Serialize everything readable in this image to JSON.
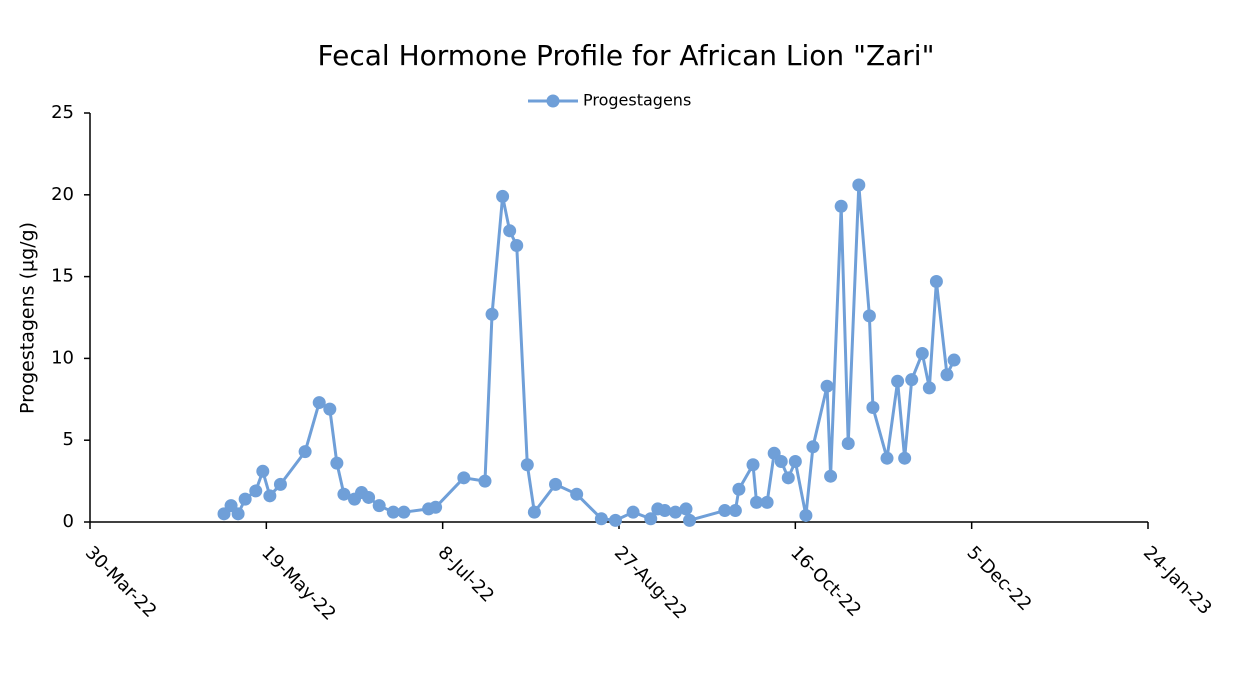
{
  "chart_data": {
    "type": "line",
    "title": "Fecal Hormone Profile for African Lion \"Zari\"",
    "y_label": "Progestagens (µg/g)",
    "legend": "top",
    "x": [
      "2022-05-07",
      "2022-05-09",
      "2022-05-11",
      "2022-05-13",
      "2022-05-16",
      "2022-05-18",
      "2022-05-20",
      "2022-05-23",
      "2022-05-30",
      "2022-06-03",
      "2022-06-06",
      "2022-06-08",
      "2022-06-10",
      "2022-06-13",
      "2022-06-15",
      "2022-06-17",
      "2022-06-20",
      "2022-06-24",
      "2022-06-27",
      "2022-07-04",
      "2022-07-06",
      "2022-07-14",
      "2022-07-20",
      "2022-07-22",
      "2022-07-25",
      "2022-07-27",
      "2022-07-29",
      "2022-08-01",
      "2022-08-03",
      "2022-08-09",
      "2022-08-15",
      "2022-08-22",
      "2022-08-26",
      "2022-08-31",
      "2022-09-05",
      "2022-09-07",
      "2022-09-09",
      "2022-09-12",
      "2022-09-15",
      "2022-09-16",
      "2022-09-26",
      "2022-09-29",
      "2022-09-30",
      "2022-10-04",
      "2022-10-05",
      "2022-10-08",
      "2022-10-10",
      "2022-10-12",
      "2022-10-14",
      "2022-10-16",
      "2022-10-19",
      "2022-10-21",
      "2022-10-25",
      "2022-10-26",
      "2022-10-29",
      "2022-10-31",
      "2022-11-03",
      "2022-11-06",
      "2022-11-07",
      "2022-11-11",
      "2022-11-14",
      "2022-11-16",
      "2022-11-18",
      "2022-11-21",
      "2022-11-23",
      "2022-11-25",
      "2022-11-28",
      "2022-11-30"
    ],
    "series": [
      {
        "name": "Progestagens",
        "color": "#6f9fd8",
        "values": [
          0.5,
          1.0,
          0.5,
          1.4,
          1.9,
          3.1,
          1.6,
          2.3,
          4.3,
          7.3,
          6.9,
          3.6,
          1.7,
          1.4,
          1.8,
          1.5,
          1.0,
          0.6,
          0.6,
          0.8,
          0.9,
          2.7,
          2.5,
          12.7,
          19.9,
          17.8,
          16.9,
          3.5,
          0.6,
          2.3,
          1.7,
          0.2,
          0.1,
          0.6,
          0.2,
          0.8,
          0.7,
          0.6,
          0.8,
          0.1,
          0.7,
          0.7,
          2.0,
          3.5,
          1.2,
          1.2,
          4.2,
          3.7,
          2.7,
          3.7,
          0.4,
          4.6,
          8.3,
          2.8,
          19.3,
          4.8,
          20.6,
          12.6,
          7.0,
          3.9,
          8.6,
          3.9,
          8.7,
          10.3,
          8.2,
          14.7,
          9.0,
          9.9
        ]
      }
    ],
    "xlim": [
      "2022-03-30",
      "2023-01-24"
    ],
    "xticks": [
      {
        "value": "2022-03-30",
        "label": "30-Mar-22"
      },
      {
        "value": "2022-05-19",
        "label": "19-May-22"
      },
      {
        "value": "2022-07-08",
        "label": "8-Jul-22"
      },
      {
        "value": "2022-08-27",
        "label": "27-Aug-22"
      },
      {
        "value": "2022-10-16",
        "label": "16-Oct-22"
      },
      {
        "value": "2022-12-05",
        "label": "5-Dec-22"
      },
      {
        "value": "2023-01-24",
        "label": "24-Jan-23"
      }
    ],
    "ylim": [
      0,
      25
    ],
    "yticks": [
      0,
      5,
      10,
      15,
      20,
      25
    ],
    "grid": false
  }
}
